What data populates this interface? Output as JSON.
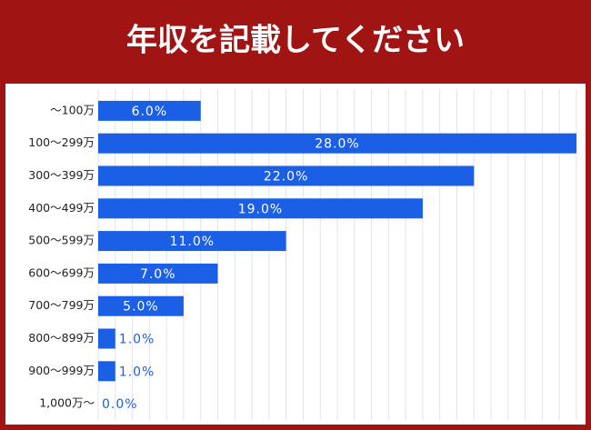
{
  "chart_data": {
    "type": "barh",
    "title": "年収を記載してください",
    "categories": [
      "～100万",
      "100～299万",
      "300～399万",
      "400～499万",
      "500～599万",
      "600～699万",
      "700～799万",
      "800～899万",
      "900～999万",
      "1,000万～"
    ],
    "values": [
      6,
      28,
      22,
      19,
      11,
      7,
      5,
      1,
      1,
      0
    ],
    "value_labels": [
      "6.0%",
      "28.0%",
      "22.0%",
      "19.0%",
      "11.0%",
      "7.0%",
      "5.0%",
      "1.0%",
      "1.0%",
      "0.0%"
    ],
    "color": "#1a5fe6",
    "xlim": [
      0,
      28
    ],
    "grid": true
  }
}
